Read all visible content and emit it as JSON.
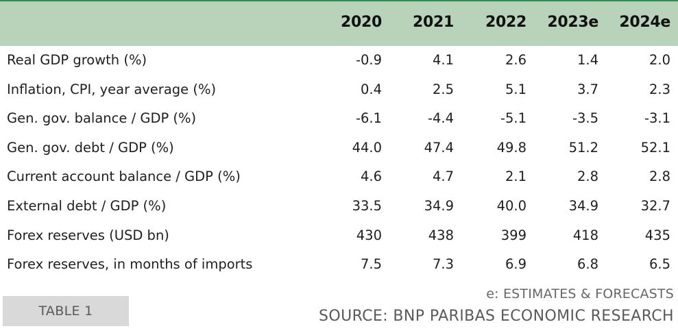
{
  "table": {
    "columns": [
      "2020",
      "2021",
      "2022",
      "2023e",
      "2024e"
    ],
    "rows": [
      {
        "label": "Real GDP growth (%)",
        "values": [
          "-0.9",
          "4.1",
          "2.6",
          "1.4",
          "2.0"
        ]
      },
      {
        "label": "Inflation, CPI, year average (%)",
        "values": [
          "0.4",
          "2.5",
          "5.1",
          "3.7",
          "2.3"
        ]
      },
      {
        "label": "Gen. gov. balance / GDP (%)",
        "values": [
          "-6.1",
          "-4.4",
          "-5.1",
          "-3.5",
          "-3.1"
        ]
      },
      {
        "label": "Gen. gov. debt / GDP (%)",
        "values": [
          "44.0",
          "47.4",
          "49.8",
          "51.2",
          "52.1"
        ]
      },
      {
        "label": "Current account balance / GDP (%)",
        "values": [
          "4.6",
          "4.7",
          "2.1",
          "2.8",
          "2.8"
        ]
      },
      {
        "label": "External debt / GDP (%)",
        "values": [
          "33.5",
          "34.9",
          "40.0",
          "34.9",
          "32.7"
        ]
      },
      {
        "label": "Forex reserves (USD bn)",
        "values": [
          "430",
          "438",
          "399",
          "418",
          "435"
        ]
      },
      {
        "label": "Forex reserves, in months of imports",
        "values": [
          "7.5",
          "7.3",
          "6.9",
          "6.8",
          "6.5"
        ]
      }
    ]
  },
  "footer": {
    "badge": "TABLE 1",
    "note": "e: ESTIMATES & FORECASTS",
    "source": "SOURCE: BNP PARIBAS ECONOMIC RESEARCH"
  },
  "colors": {
    "header_bg": "#b9d3bb",
    "header_border": "#2f8a55",
    "badge_bg": "#d9d9d9"
  }
}
